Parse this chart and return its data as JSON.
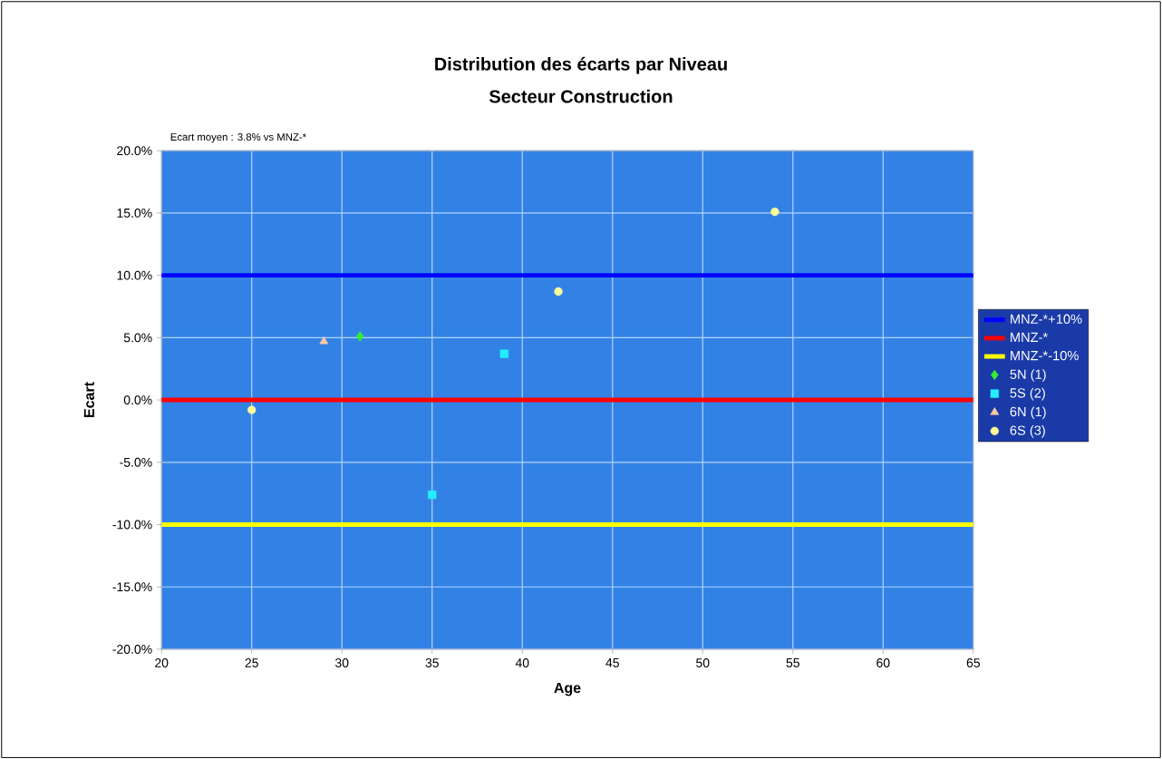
{
  "chart_data": {
    "type": "scatter",
    "title": "Distribution des écarts par Niveau",
    "subtitle": "Secteur Construction",
    "xlabel": "Age",
    "ylabel": "Ecart",
    "annotations": [
      "Ecart moyen : 3.8%  vs  MNZ-*"
    ],
    "xlim": [
      20,
      65
    ],
    "xticks": [
      20,
      25,
      30,
      35,
      40,
      45,
      50,
      55,
      60,
      65
    ],
    "ylim": [
      -20,
      20
    ],
    "yticks": [
      {
        "value": -20,
        "label": "-20.0%"
      },
      {
        "value": -15,
        "label": "-15.0%"
      },
      {
        "value": -10,
        "label": "-10.0%"
      },
      {
        "value": -5,
        "label": "-5.0%"
      },
      {
        "value": 0,
        "label": "0.0%"
      },
      {
        "value": 5,
        "label": "5.0%"
      },
      {
        "value": 10,
        "label": "10.0%"
      },
      {
        "value": 15,
        "label": "15.0%"
      },
      {
        "value": 20,
        "label": "20.0%"
      }
    ],
    "grid": true,
    "legend": "right",
    "series": [
      {
        "name": "MNZ-*+10%",
        "type": "line",
        "color": "#0000ff",
        "marker": "none",
        "x": [
          20,
          65
        ],
        "values": [
          10,
          10
        ]
      },
      {
        "name": "MNZ-*",
        "type": "line",
        "color": "#ff0000",
        "marker": "none",
        "x": [
          20,
          65
        ],
        "values": [
          0,
          0
        ]
      },
      {
        "name": "MNZ-*-10%",
        "type": "line",
        "color": "#ffff00",
        "marker": "none",
        "x": [
          20,
          65
        ],
        "values": [
          -10,
          -10
        ]
      },
      {
        "name": "5N  (1)",
        "color": "#33ee33",
        "marker": "diamond",
        "x": [
          31
        ],
        "values": [
          5.1
        ]
      },
      {
        "name": "5S  (2)",
        "color": "#22eeff",
        "marker": "square",
        "x": [
          35,
          39
        ],
        "values": [
          -7.6,
          3.7
        ]
      },
      {
        "name": "6N  (1)",
        "color": "#f8c8a0",
        "marker": "triangle",
        "x": [
          29
        ],
        "values": [
          4.7
        ]
      },
      {
        "name": "6S  (3)",
        "color": "#ffff99",
        "marker": "circle",
        "x": [
          25,
          42,
          54
        ],
        "values": [
          -0.8,
          8.7,
          15.1
        ]
      }
    ]
  }
}
